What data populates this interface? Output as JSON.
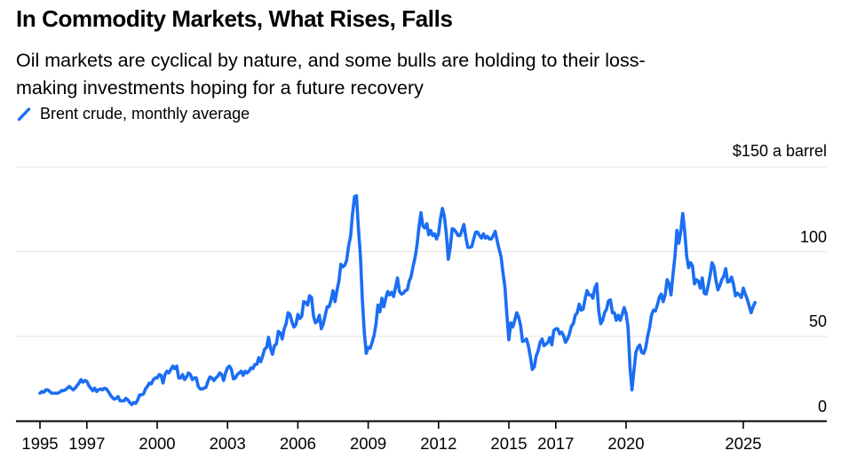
{
  "header": {
    "title": "In Commodity Markets, What Rises, Falls",
    "subtitle_line_1": "Oil markets are cyclical by nature, and some bulls are holding to their loss-",
    "subtitle_line_2": "making investments hoping for a future recovery"
  },
  "legend": {
    "label": "Brent crude, monthly average",
    "swatch_icon": "blue-slash-icon"
  },
  "colors": {
    "line": "#1b6ef3",
    "grid": "#e2e2e2",
    "axis": "#000000",
    "text": "#000000",
    "background": "#ffffff"
  },
  "chart_data": {
    "type": "line",
    "title": "Brent crude, monthly average",
    "xlabel": "",
    "ylabel": "$ a barrel",
    "ylim": [
      0,
      150
    ],
    "grid": "horizontal",
    "legend_position": "top-left",
    "y_axis": {
      "unit_label": "$150 a barrel",
      "gridline_values": [
        50,
        100,
        150
      ],
      "label_values": [
        100,
        50,
        0
      ]
    },
    "x_axis": {
      "tick_years": [
        1995,
        1997,
        2000,
        2003,
        2006,
        2009,
        2012,
        2015,
        2017,
        2020,
        2025
      ],
      "tick_labels": [
        "1995",
        "1997",
        "2000",
        "2003",
        "2006",
        "2009",
        "2012",
        "2015",
        "2017",
        "2020",
        "2025"
      ]
    },
    "series": [
      {
        "name": "Brent crude, monthly average",
        "start_year": 1995,
        "interval_months": 1,
        "values": [
          16.5,
          17.5,
          17,
          18.5,
          18.5,
          17.5,
          16.5,
          16.5,
          16.5,
          16.5,
          17,
          18,
          18,
          18.5,
          19.5,
          20.5,
          19.5,
          18.5,
          19.5,
          21,
          22.5,
          24.5,
          23,
          24,
          23.5,
          21,
          19.5,
          18,
          19.5,
          17.5,
          18.5,
          19,
          18.5,
          19.5,
          19,
          17.5,
          15.5,
          14,
          13,
          13.5,
          14.5,
          12,
          12,
          12,
          13.5,
          12.5,
          11,
          9.8,
          11,
          10.5,
          12.5,
          15.5,
          15.5,
          16,
          19,
          20.5,
          22.5,
          22,
          24.5,
          25.5,
          25.5,
          27.5,
          27,
          22.5,
          27.5,
          29.5,
          28.5,
          30.5,
          32.5,
          31,
          32.5,
          25.5,
          25.5,
          27.5,
          24.5,
          26,
          28.5,
          27.5,
          24.5,
          25.5,
          25.5,
          20.5,
          19,
          19,
          19.5,
          20,
          23.5,
          26,
          25.5,
          24,
          25.5,
          26.5,
          28.5,
          27.5,
          24,
          28.5,
          31.5,
          32.5,
          30.5,
          25,
          25.5,
          27.5,
          28.5,
          29.5,
          27,
          29.5,
          28.5,
          29.5,
          31.5,
          31,
          33.5,
          33.5,
          37.5,
          35,
          38.5,
          42.5,
          43.5,
          49.5,
          43,
          39.5,
          44.5,
          45.5,
          53,
          52,
          48.5,
          54.5,
          57.5,
          64,
          63,
          58.5,
          55.5,
          57,
          63,
          60.5,
          62,
          70.5,
          70,
          68.5,
          74,
          73,
          62,
          58,
          59,
          62.5,
          54.5,
          57.5,
          62.5,
          67.5,
          67.5,
          71.5,
          77,
          70.5,
          77,
          82.5,
          92.5,
          91,
          92,
          95,
          103.5,
          109,
          122.5,
          132.5,
          133,
          113.5,
          98,
          72,
          52.5,
          40,
          43.5,
          43,
          46.5,
          50.5,
          57.5,
          68.5,
          64.5,
          72.5,
          67.5,
          72.5,
          76.5,
          74.5,
          76,
          73.5,
          79,
          84.5,
          76.5,
          75,
          75.5,
          77,
          77.5,
          82.5,
          85.5,
          91.5,
          96.5,
          104,
          114.5,
          123,
          115,
          114,
          116.5,
          110,
          112.5,
          109.5,
          110.5,
          107.5,
          110.5,
          119.5,
          125.5,
          120.5,
          110.5,
          95.5,
          102.5,
          113.5,
          113,
          111.5,
          109.5,
          109.5,
          112.5,
          116,
          108.5,
          102.5,
          102.5,
          103,
          107.5,
          111.5,
          111.5,
          109.5,
          108,
          110.5,
          108,
          109,
          107.5,
          107.5,
          109.5,
          112,
          106.5,
          101.5,
          97,
          87.5,
          79,
          62.5,
          48,
          58,
          55.5,
          59.5,
          64,
          61.5,
          56.5,
          47,
          47.5,
          48.5,
          44.5,
          38,
          30.5,
          32,
          38.5,
          41.5,
          46.5,
          48.5,
          44.5,
          45.5,
          46.5,
          49.5,
          45,
          53.5,
          54.5,
          54.5,
          51.5,
          52.5,
          50.5,
          46.5,
          48.5,
          51.5,
          56,
          57.5,
          62.5,
          64,
          69,
          65.5,
          66,
          72,
          77,
          74.5,
          74.5,
          72.5,
          78.5,
          81,
          65,
          57.5,
          59.5,
          64,
          66,
          71,
          71.5,
          64,
          64,
          59.5,
          62.5,
          59.5,
          63,
          67,
          63.5,
          55.5,
          32,
          18.5,
          29.5,
          40.5,
          43.5,
          45,
          40.5,
          40,
          43,
          50,
          55,
          62.5,
          65.5,
          65,
          68.5,
          73,
          75,
          70.5,
          74.5,
          83.5,
          81,
          74.5,
          86.5,
          97,
          112.5,
          105,
          112,
          122.5,
          112,
          97.5,
          90.5,
          93.5,
          91.5,
          81,
          83.5,
          82.5,
          78.5,
          84.5,
          75.5,
          75,
          80,
          86,
          93.5,
          91,
          83,
          77.5,
          80,
          83.5,
          85.5,
          90,
          82,
          82.5,
          85,
          80.5,
          74,
          75.5,
          74.5,
          73,
          78.5,
          75,
          72,
          68,
          64,
          67.5,
          70
        ]
      }
    ]
  }
}
